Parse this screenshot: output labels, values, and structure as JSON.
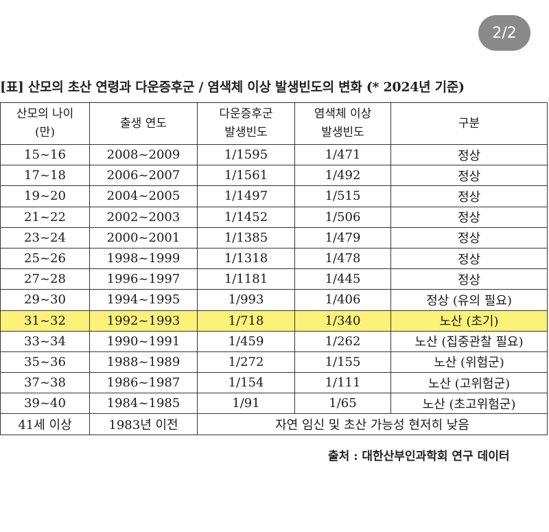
{
  "page_indicator": "2/2",
  "caption": "[표] 산모의 초산 연령과 다운증후군 / 염색체 이상 발생빈도의 변화 (* 2024년 기준)",
  "table": {
    "headers": [
      {
        "line1": "산모의 나이",
        "line2": "(만)"
      },
      {
        "line1": "출생 연도",
        "line2": ""
      },
      {
        "line1": "다운증후군",
        "line2": "발생빈도"
      },
      {
        "line1": "염색체 이상",
        "line2": "발생빈도"
      },
      {
        "line1": "구분",
        "line2": ""
      }
    ],
    "rows": [
      [
        "15~16",
        "2008~2009",
        "1/1595",
        "1/471",
        "정상"
      ],
      [
        "17~18",
        "2006~2007",
        "1/1561",
        "1/492",
        "정상"
      ],
      [
        "19~20",
        "2004~2005",
        "1/1497",
        "1/515",
        "정상"
      ],
      [
        "21~22",
        "2002~2003",
        "1/1452",
        "1/506",
        "정상"
      ],
      [
        "23~24",
        "2000~2001",
        "1/1385",
        "1/479",
        "정상"
      ],
      [
        "25~26",
        "1998~1999",
        "1/1318",
        "1/478",
        "정상"
      ],
      [
        "27~28",
        "1996~1997",
        "1/1181",
        "1/445",
        "정상"
      ],
      [
        "29~30",
        "1994~1995",
        "1/993",
        "1/406",
        "정상 (유의 필요)"
      ],
      [
        "31~32",
        "1992~1993",
        "1/718",
        "1/340",
        "노산 (초기)"
      ],
      [
        "33~34",
        "1990~1991",
        "1/459",
        "1/262",
        "노산 (집중관찰 필요)"
      ],
      [
        "35~36",
        "1988~1989",
        "1/272",
        "1/155",
        "노산 (위험군)"
      ],
      [
        "37~38",
        "1986~1987",
        "1/154",
        "1/111",
        "노산 (고위험군)"
      ],
      [
        "39~40",
        "1984~1985",
        "1/91",
        "1/65",
        "노산 (초고위험군)"
      ]
    ],
    "highlighted_row": 8,
    "last_row": {
      "age": "41세 이상",
      "year": "1983년 이전",
      "note": "자연 임신 및 초산 가능성 현저히 낮음"
    }
  },
  "source": "출처 : 대한산부인과학회 연구 데이터",
  "colors": {
    "highlight": "#fbf27a",
    "badge": "#8a8a8a"
  }
}
